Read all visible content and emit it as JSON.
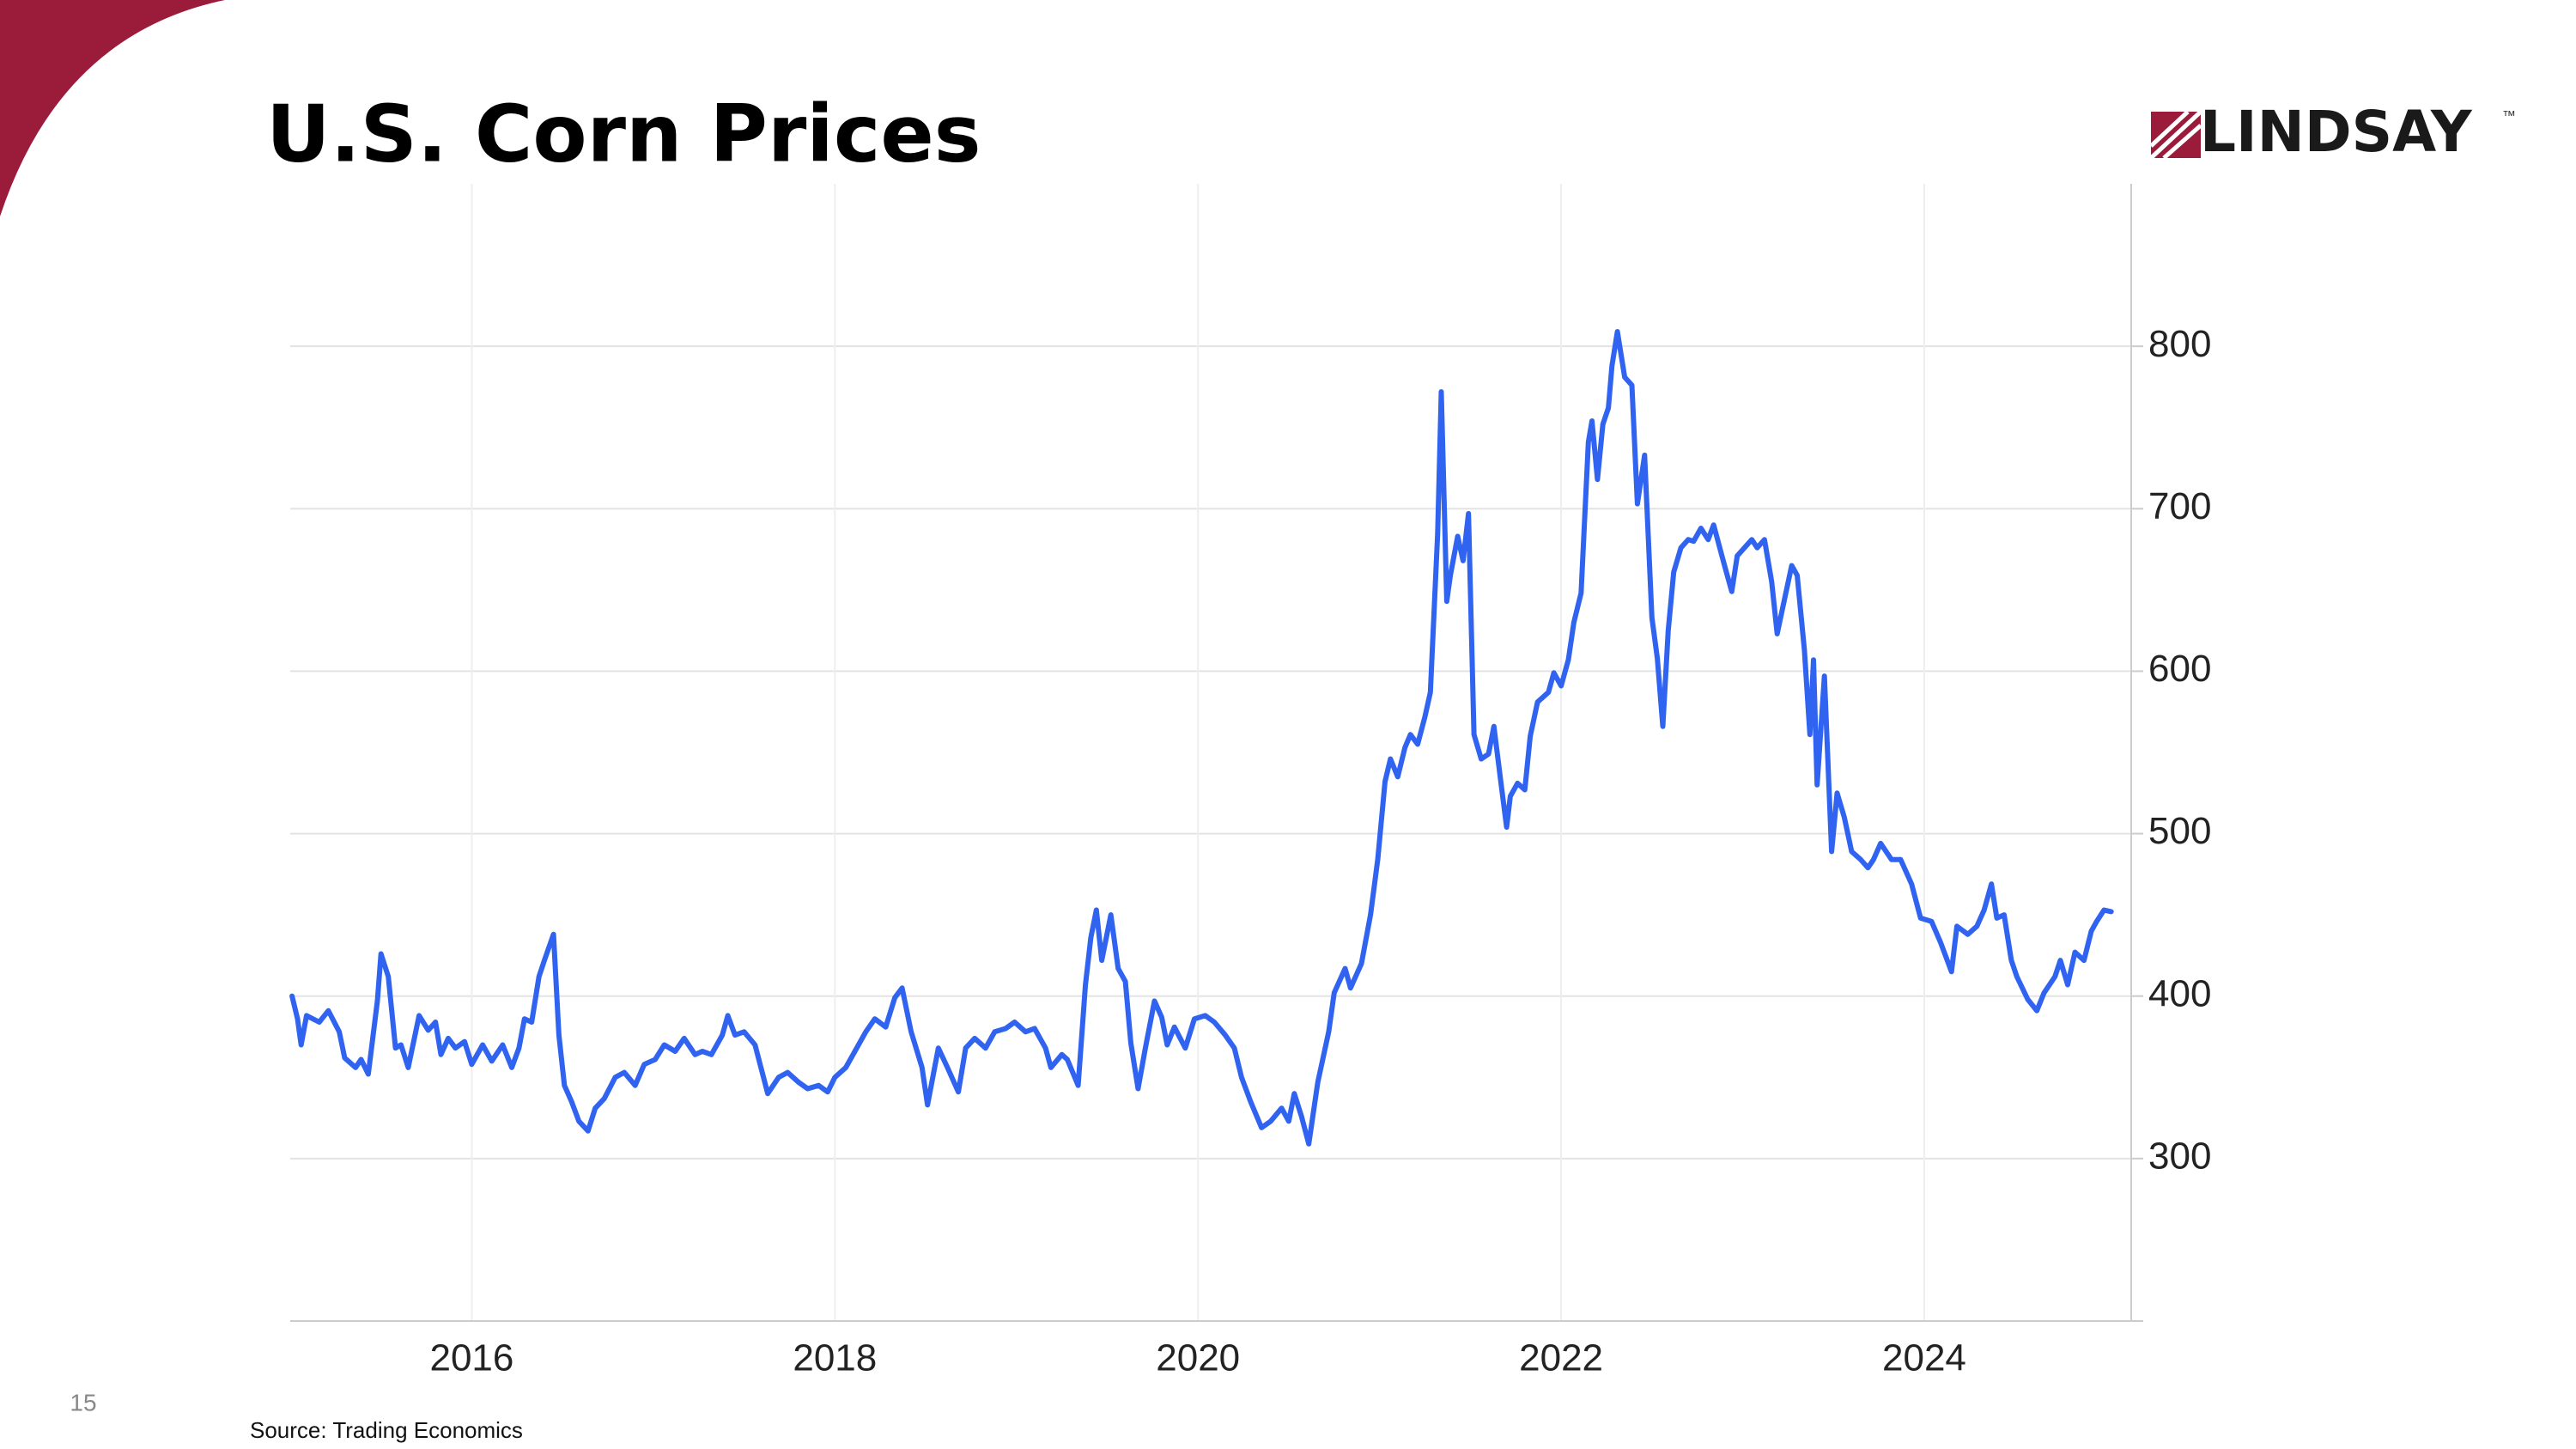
{
  "chart_data": {
    "type": "line",
    "title": "U.S. Corn Prices",
    "source": "Source: Trading Economics",
    "color": "#2f63f0",
    "grid": true,
    "xlim": [
      2015,
      2025.14
    ],
    "xticks": [
      2016,
      2018,
      2020,
      2022,
      2024
    ],
    "ylim": [
      200,
      900
    ],
    "yticks": [
      300,
      400,
      500,
      600,
      700,
      800
    ],
    "x": [
      2015.01,
      2015.04,
      2015.06,
      2015.09,
      2015.16,
      2015.21,
      2015.27,
      2015.3,
      2015.36,
      2015.39,
      2015.43,
      2015.48,
      2015.5,
      2015.54,
      2015.58,
      2015.61,
      2015.65,
      2015.71,
      2015.76,
      2015.8,
      2015.83,
      2015.87,
      2015.91,
      2015.96,
      2016.0,
      2016.06,
      2016.11,
      2016.17,
      2016.22,
      2016.26,
      2016.29,
      2016.33,
      2016.37,
      2016.4,
      2016.45,
      2016.48,
      2016.51,
      2016.55,
      2016.59,
      2016.64,
      2016.68,
      2016.73,
      2016.79,
      2016.84,
      2016.9,
      2016.95,
      2017.01,
      2017.06,
      2017.12,
      2017.17,
      2017.23,
      2017.27,
      2017.32,
      2017.38,
      2017.41,
      2017.45,
      2017.5,
      2017.56,
      2017.63,
      2017.69,
      2017.74,
      2017.8,
      2017.85,
      2017.91,
      2017.96,
      2018.0,
      2018.06,
      2018.11,
      2018.17,
      2018.22,
      2018.28,
      2018.33,
      2018.37,
      2018.42,
      2018.48,
      2018.51,
      2018.57,
      2018.62,
      2018.68,
      2018.72,
      2018.77,
      2018.83,
      2018.88,
      2018.94,
      2018.99,
      2019.05,
      2019.1,
      2019.16,
      2019.19,
      2019.25,
      2019.28,
      2019.34,
      2019.38,
      2019.41,
      2019.44,
      2019.47,
      2019.52,
      2019.56,
      2019.6,
      2019.63,
      2019.67,
      2019.71,
      2019.76,
      2019.8,
      2019.83,
      2019.87,
      2019.93,
      2019.98,
      2020.04,
      2020.09,
      2020.15,
      2020.2,
      2020.24,
      2020.29,
      2020.35,
      2020.4,
      2020.46,
      2020.5,
      2020.53,
      2020.57,
      2020.61,
      2020.66,
      2020.72,
      2020.75,
      2020.81,
      2020.84,
      2020.9,
      2020.95,
      2020.99,
      2021.03,
      2021.06,
      2021.1,
      2021.14,
      2021.17,
      2021.21,
      2021.25,
      2021.28,
      2021.32,
      2021.34,
      2021.37,
      2021.39,
      2021.43,
      2021.46,
      2021.49,
      2021.52,
      2021.56,
      2021.6,
      2021.63,
      2021.67,
      2021.7,
      2021.72,
      2021.76,
      2021.8,
      2021.83,
      2021.87,
      2021.93,
      2021.96,
      2022.0,
      2022.04,
      2022.07,
      2022.11,
      2022.15,
      2022.17,
      2022.2,
      2022.23,
      2022.26,
      2022.28,
      2022.31,
      2022.35,
      2022.39,
      2022.42,
      2022.46,
      2022.5,
      2022.53,
      2022.56,
      2022.59,
      2022.62,
      2022.66,
      2022.7,
      2022.73,
      2022.77,
      2022.81,
      2022.84,
      2022.9,
      2022.94,
      2022.97,
      2023.01,
      2023.05,
      2023.08,
      2023.12,
      2023.16,
      2023.19,
      2023.23,
      2023.27,
      2023.3,
      2023.34,
      2023.37,
      2023.39,
      2023.41,
      2023.45,
      2023.49,
      2023.52,
      2023.56,
      2023.6,
      2023.65,
      2023.69,
      2023.72,
      2023.76,
      2023.82,
      2023.87,
      2023.93,
      2023.98,
      2024.04,
      2024.09,
      2024.15,
      2024.18,
      2024.24,
      2024.29,
      2024.33,
      2024.37,
      2024.4,
      2024.44,
      2024.48,
      2024.51,
      2024.57,
      2024.62,
      2024.66,
      2024.72,
      2024.75,
      2024.79,
      2024.83,
      2024.88,
      2024.92,
      2024.95,
      2024.99,
      2025.03
    ],
    "values": [
      400,
      386,
      370,
      388,
      384,
      391,
      378,
      362,
      356,
      361,
      352,
      397,
      426,
      412,
      368,
      370,
      356,
      388,
      379,
      384,
      364,
      374,
      368,
      372,
      358,
      370,
      360,
      370,
      356,
      368,
      386,
      384,
      412,
      422,
      438,
      376,
      345,
      335,
      323,
      317,
      331,
      337,
      350,
      353,
      345,
      358,
      361,
      370,
      366,
      374,
      364,
      366,
      364,
      376,
      388,
      376,
      378,
      370,
      340,
      350,
      353,
      347,
      343,
      345,
      341,
      350,
      356,
      366,
      378,
      386,
      381,
      399,
      405,
      378,
      356,
      333,
      368,
      356,
      341,
      368,
      374,
      368,
      378,
      380,
      384,
      378,
      380,
      368,
      356,
      364,
      361,
      345,
      407,
      436,
      453,
      422,
      450,
      417,
      409,
      371,
      343,
      368,
      397,
      387,
      370,
      381,
      368,
      386,
      388,
      384,
      376,
      368,
      350,
      335,
      319,
      323,
      331,
      323,
      340,
      326,
      309,
      347,
      378,
      402,
      417,
      405,
      420,
      450,
      484,
      532,
      546,
      535,
      553,
      561,
      555,
      572,
      587,
      685,
      772,
      643,
      659,
      683,
      668,
      697,
      561,
      546,
      549,
      566,
      530,
      504,
      523,
      531,
      527,
      560,
      581,
      587,
      599,
      591,
      607,
      630,
      648,
      741,
      754,
      718,
      752,
      762,
      788,
      809,
      781,
      776,
      703,
      733,
      633,
      608,
      566,
      625,
      661,
      676,
      681,
      680,
      688,
      681,
      690,
      665,
      649,
      671,
      676,
      681,
      676,
      681,
      655,
      623,
      644,
      665,
      659,
      613,
      561,
      607,
      530,
      597,
      489,
      525,
      510,
      489,
      484,
      479,
      484,
      494,
      484,
      484,
      469,
      448,
      446,
      433,
      415,
      443,
      438,
      443,
      453,
      469,
      448,
      450,
      422,
      412,
      398,
      391,
      402,
      412,
      422,
      407,
      427,
      422,
      440,
      446,
      453,
      452
    ]
  },
  "slide": {
    "page_number": "15",
    "logo": "LINDSAY",
    "trademark": "™"
  }
}
